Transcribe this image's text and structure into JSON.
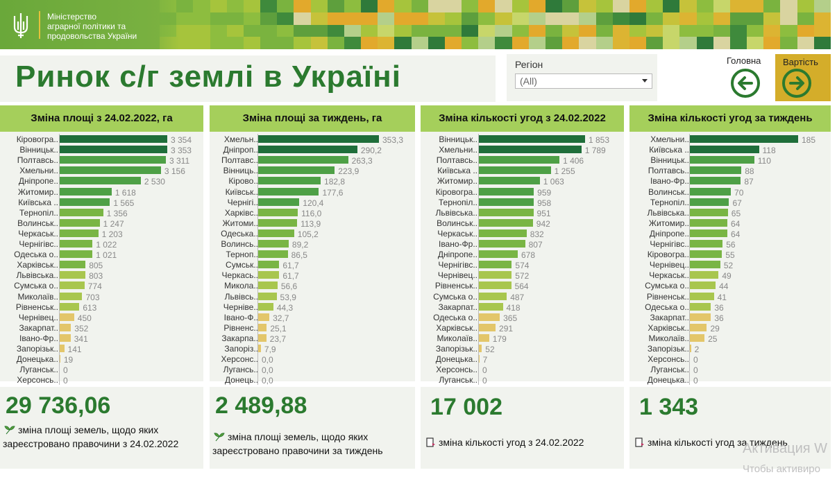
{
  "header": {
    "ministry_line1": "Міністерство",
    "ministry_line2": "аграрної політики та",
    "ministry_line3": "продовольства України"
  },
  "title": "Ринок с/г землі в Україні",
  "region": {
    "label": "Регіон",
    "value": "(All)"
  },
  "nav": {
    "home_label": "Головна",
    "cost_label": "Вартість"
  },
  "colors": {
    "dark": "#1f6e3a",
    "mid": "#4ea046",
    "light": "#a8c64e",
    "pale": "#e3c66a",
    "panel": "#f1f3ee",
    "header": "#a5cf5b"
  },
  "panels": [
    {
      "title": "Зміна площі з 24.02.2022, га",
      "max": 3354,
      "rows": [
        {
          "label": "Кіровогра..",
          "value": "3 354",
          "v": 3354
        },
        {
          "label": "Вінницьк..",
          "value": "3 353",
          "v": 3353
        },
        {
          "label": "Полтавсь..",
          "value": "3 311",
          "v": 3311
        },
        {
          "label": "Хмельни..",
          "value": "3 156",
          "v": 3156
        },
        {
          "label": "Дніпропе..",
          "value": "2 530",
          "v": 2530
        },
        {
          "label": "Житомир..",
          "value": "1 618",
          "v": 1618
        },
        {
          "label": "Київська ..",
          "value": "1 565",
          "v": 1565
        },
        {
          "label": "Тернопіл..",
          "value": "1 356",
          "v": 1356
        },
        {
          "label": "Волинськ..",
          "value": "1 247",
          "v": 1247
        },
        {
          "label": "Черкаськ..",
          "value": "1 203",
          "v": 1203
        },
        {
          "label": "Чернігівс..",
          "value": "1 022",
          "v": 1022
        },
        {
          "label": "Одеська о..",
          "value": "1 021",
          "v": 1021
        },
        {
          "label": "Харківськ..",
          "value": "805",
          "v": 805
        },
        {
          "label": "Львівська..",
          "value": "803",
          "v": 803
        },
        {
          "label": "Сумська о..",
          "value": "774",
          "v": 774
        },
        {
          "label": "Миколаїв..",
          "value": "703",
          "v": 703
        },
        {
          "label": "Рівненськ..",
          "value": "613",
          "v": 613
        },
        {
          "label": "Чернівец..",
          "value": "450",
          "v": 450
        },
        {
          "label": "Закарпат..",
          "value": "352",
          "v": 352
        },
        {
          "label": "Івано-Фр..",
          "value": "341",
          "v": 341
        },
        {
          "label": "Запорізьк..",
          "value": "141",
          "v": 141
        },
        {
          "label": "Донецька..",
          "value": "19",
          "v": 19
        },
        {
          "label": "Луганськ..",
          "value": "0",
          "v": 0
        },
        {
          "label": "Херсонсь..",
          "value": "0",
          "v": 0
        }
      ],
      "kpi": "29 736,06",
      "kpi_desc": "зміна площі земель, щодо яких зареєстровано правочини з 24.02.2022",
      "kpi_icon": "plant-icon"
    },
    {
      "title": "Зміна площі за тиждень, га",
      "max": 353.3,
      "rows": [
        {
          "label": "Хмельн..",
          "value": "353,3",
          "v": 353.3
        },
        {
          "label": "Дніпроп..",
          "value": "290,2",
          "v": 290.2
        },
        {
          "label": "Полтавс..",
          "value": "263,3",
          "v": 263.3
        },
        {
          "label": "Вінниць..",
          "value": "223,9",
          "v": 223.9
        },
        {
          "label": "Кірово..",
          "value": "182,8",
          "v": 182.8
        },
        {
          "label": "Київськ..",
          "value": "177,6",
          "v": 177.6
        },
        {
          "label": "Чернігі..",
          "value": "120,4",
          "v": 120.4
        },
        {
          "label": "Харківс..",
          "value": "116,0",
          "v": 116.0
        },
        {
          "label": "Житоми..",
          "value": "113,9",
          "v": 113.9
        },
        {
          "label": "Одеська..",
          "value": "105,2",
          "v": 105.2
        },
        {
          "label": "Волинсь..",
          "value": "89,2",
          "v": 89.2
        },
        {
          "label": "Терноп..",
          "value": "86,5",
          "v": 86.5
        },
        {
          "label": "Сумськ..",
          "value": "61,7",
          "v": 61.7
        },
        {
          "label": "Черкась..",
          "value": "61,7",
          "v": 61.7
        },
        {
          "label": "Микола..",
          "value": "56,6",
          "v": 56.6
        },
        {
          "label": "Львівсь..",
          "value": "53,9",
          "v": 53.9
        },
        {
          "label": "Черніве..",
          "value": "44,3",
          "v": 44.3
        },
        {
          "label": "Івано-Ф..",
          "value": "32,7",
          "v": 32.7
        },
        {
          "label": "Рівненс..",
          "value": "25,1",
          "v": 25.1
        },
        {
          "label": "Закарпа..",
          "value": "23,7",
          "v": 23.7
        },
        {
          "label": "Запоріз..",
          "value": "7,9",
          "v": 7.9
        },
        {
          "label": "Херсонс..",
          "value": "0,0",
          "v": 0
        },
        {
          "label": "Лугансь..",
          "value": "0,0",
          "v": 0
        },
        {
          "label": "Донець..",
          "value": "0,0",
          "v": 0
        }
      ],
      "kpi": "2 489,88",
      "kpi_desc": "зміна площі земель, щодо яких зареєстровано правочини за тиждень",
      "kpi_icon": "plant-icon"
    },
    {
      "title": "Зміна кількості угод з 24.02.2022",
      "max": 1853,
      "rows": [
        {
          "label": "Вінницьк..",
          "value": "1 853",
          "v": 1853
        },
        {
          "label": "Хмельни..",
          "value": "1 789",
          "v": 1789
        },
        {
          "label": "Полтавсь..",
          "value": "1 406",
          "v": 1406
        },
        {
          "label": "Київська ..",
          "value": "1 255",
          "v": 1255
        },
        {
          "label": "Житомир..",
          "value": "1 063",
          "v": 1063
        },
        {
          "label": "Кіровогра..",
          "value": "959",
          "v": 959
        },
        {
          "label": "Тернопіл..",
          "value": "958",
          "v": 958
        },
        {
          "label": "Львівська..",
          "value": "951",
          "v": 951
        },
        {
          "label": "Волинськ..",
          "value": "942",
          "v": 942
        },
        {
          "label": "Черкаськ..",
          "value": "832",
          "v": 832
        },
        {
          "label": "Івано-Фр..",
          "value": "807",
          "v": 807
        },
        {
          "label": "Дніпропе..",
          "value": "678",
          "v": 678
        },
        {
          "label": "Чернігівс..",
          "value": "574",
          "v": 574
        },
        {
          "label": "Чернівец..",
          "value": "572",
          "v": 572
        },
        {
          "label": "Рівненськ..",
          "value": "564",
          "v": 564
        },
        {
          "label": "Сумська о..",
          "value": "487",
          "v": 487
        },
        {
          "label": "Закарпат..",
          "value": "418",
          "v": 418
        },
        {
          "label": "Одеська о..",
          "value": "365",
          "v": 365
        },
        {
          "label": "Харківськ..",
          "value": "291",
          "v": 291
        },
        {
          "label": "Миколаїв..",
          "value": "179",
          "v": 179
        },
        {
          "label": "Запорізьк..",
          "value": "52",
          "v": 52
        },
        {
          "label": "Донецька..",
          "value": "7",
          "v": 7
        },
        {
          "label": "Херсонсь..",
          "value": "0",
          "v": 0
        },
        {
          "label": "Луганськ..",
          "value": "0",
          "v": 0
        }
      ],
      "kpi": "17 002",
      "kpi_desc": "зміна кількості угод з 24.02.2022",
      "kpi_icon": "document-icon"
    },
    {
      "title": "Зміна кількості угод за тиждень",
      "max": 185,
      "rows": [
        {
          "label": "Хмельни..",
          "value": "185",
          "v": 185
        },
        {
          "label": "Київська ..",
          "value": "118",
          "v": 118
        },
        {
          "label": "Вінницьк..",
          "value": "110",
          "v": 110
        },
        {
          "label": "Полтавсь..",
          "value": "88",
          "v": 88
        },
        {
          "label": "Івано-Фр..",
          "value": "87",
          "v": 87
        },
        {
          "label": "Волинськ..",
          "value": "70",
          "v": 70
        },
        {
          "label": "Тернопіл..",
          "value": "67",
          "v": 67
        },
        {
          "label": "Львівська..",
          "value": "65",
          "v": 65
        },
        {
          "label": "Житомир..",
          "value": "64",
          "v": 64
        },
        {
          "label": "Дніпропе..",
          "value": "64",
          "v": 64
        },
        {
          "label": "Чернігівс..",
          "value": "56",
          "v": 56
        },
        {
          "label": "Кіровогра..",
          "value": "55",
          "v": 55
        },
        {
          "label": "Чернівец..",
          "value": "52",
          "v": 52
        },
        {
          "label": "Черкаськ..",
          "value": "49",
          "v": 49
        },
        {
          "label": "Сумська о..",
          "value": "44",
          "v": 44
        },
        {
          "label": "Рівненськ..",
          "value": "41",
          "v": 41
        },
        {
          "label": "Одеська о..",
          "value": "36",
          "v": 36
        },
        {
          "label": "Закарпат..",
          "value": "36",
          "v": 36
        },
        {
          "label": "Харківськ..",
          "value": "29",
          "v": 29
        },
        {
          "label": "Миколаїв..",
          "value": "25",
          "v": 25
        },
        {
          "label": "Запорізьк..",
          "value": "2",
          "v": 2
        },
        {
          "label": "Херсонсь..",
          "value": "0",
          "v": 0
        },
        {
          "label": "Луганськ..",
          "value": "0",
          "v": 0
        },
        {
          "label": "Донецька..",
          "value": "0",
          "v": 0
        }
      ],
      "kpi": "1 343",
      "kpi_desc": "зміна кількості угод за тиждень",
      "kpi_icon": "document-icon"
    }
  ],
  "watermark": {
    "line1": "Активация W",
    "line2": "Чтобы активиро"
  }
}
